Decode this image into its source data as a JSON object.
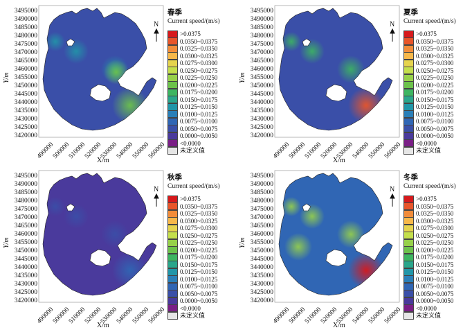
{
  "y_ticks": [
    "3495000",
    "3490000",
    "3485000",
    "3480000",
    "3475000",
    "3470000",
    "3465000",
    "3460000",
    "3455000",
    "3450000",
    "3445000",
    "3440000",
    "3435000",
    "3430000",
    "3425000",
    "3420000"
  ],
  "x_ticks": [
    "490000",
    "500000",
    "510000",
    "520000",
    "530000",
    "540000",
    "550000",
    "560000"
  ],
  "y_axis_label": "Y/m",
  "x_axis_label": "X/m",
  "north_label": "N",
  "legend_title": "Current speed/(m/s)",
  "legend_items": [
    {
      "label": ">0.0375",
      "color": "#d7191c"
    },
    {
      "label": "0.0350~0.0375",
      "color": "#e8552a"
    },
    {
      "label": "0.0325~0.0350",
      "color": "#f28c3a"
    },
    {
      "label": "0.0300~0.0325",
      "color": "#f7b84a"
    },
    {
      "label": "0.0275~0.0300",
      "color": "#e6d44e"
    },
    {
      "label": "0.0250~0.0275",
      "color": "#c4df4c"
    },
    {
      "label": "0.0225~0.0250",
      "color": "#97d14a"
    },
    {
      "label": "0.0200~0.0225",
      "color": "#6cc24b"
    },
    {
      "label": "0.0175~0.0200",
      "color": "#3db561"
    },
    {
      "label": "0.0150~0.0175",
      "color": "#2aa68b"
    },
    {
      "label": "0.0125~0.0150",
      "color": "#2196a8"
    },
    {
      "label": "0.0100~0.0125",
      "color": "#2a7fb8"
    },
    {
      "label": "0.0075~0.0100",
      "color": "#3066b4"
    },
    {
      "label": "0.0050~0.0075",
      "color": "#3a4fa8"
    },
    {
      "label": "0.0000~0.0050",
      "color": "#4a3a9c"
    },
    {
      "label": "<0.0000",
      "color": "#7a1f86"
    },
    {
      "label": "未定义值",
      "color": "#e6e6e6"
    }
  ],
  "panels": [
    {
      "season": "春季",
      "base_color": "#3a4fa8",
      "hotspot_color": "#6cc24b",
      "hotspot2_color": "#2196a8"
    },
    {
      "season": "夏季",
      "base_color": "#3a4fa8",
      "hotspot_color": "#e8552a",
      "hotspot2_color": "#3db561"
    },
    {
      "season": "秋季",
      "base_color": "#4a3a9c",
      "hotspot_color": "#3066b4",
      "hotspot2_color": "#3a4fa8"
    },
    {
      "season": "冬季",
      "base_color": "#3066b4",
      "hotspot_color": "#d7191c",
      "hotspot2_color": "#97d14a"
    }
  ]
}
